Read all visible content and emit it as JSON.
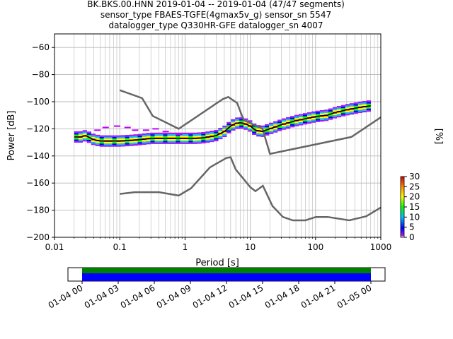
{
  "chart_data": [
    {
      "type": "heatmap",
      "title_lines": [
        "BK.BKS.00.HNN   2019-01-04 -- 2019-01-04  (47/47 segments)",
        "sensor_type FBAES-TGFE(4gmax5v_g) sensor_sn 5547",
        "datalogger_type Q330HR-GFE datalogger_sn 4007"
      ],
      "xlabel": "Period [s]",
      "ylabel": "Power [dB]",
      "xscale": "log",
      "xlim": [
        0.01,
        1000
      ],
      "ylim": [
        -200,
        -50
      ],
      "x_ticks": [
        0.01,
        0.1,
        1,
        10,
        100,
        1000
      ],
      "x_tick_labels": [
        "0.01",
        "0.1",
        "1",
        "10",
        "100",
        "1000"
      ],
      "y_ticks": [
        -60,
        -80,
        -100,
        -120,
        -140,
        -160,
        -180,
        -200
      ],
      "y_tick_labels": [
        "−60",
        "−80",
        "−100",
        "−120",
        "−140",
        "−160",
        "−180",
        "−200"
      ],
      "grid": true,
      "noise_model_high": {
        "x": [
          0.1,
          0.22,
          0.32,
          0.8,
          3.8,
          4.6,
          6.3,
          7.9,
          15.4,
          20,
          354.8,
          1000
        ],
        "y": [
          -91.5,
          -97.4,
          -110.5,
          -120,
          -98,
          -96.5,
          -101,
          -113.5,
          -120,
          -138.5,
          -126,
          -111.5
        ]
      },
      "noise_model_low": {
        "x": [
          0.1,
          0.17,
          0.4,
          0.8,
          1.24,
          2.4,
          4.3,
          5.0,
          6.0,
          10,
          12,
          15.6,
          21.9,
          31.6,
          45,
          70,
          101,
          154,
          328,
          600,
          1000
        ],
        "y": [
          -168,
          -166.7,
          -166.7,
          -169.2,
          -163.8,
          -148.5,
          -141.5,
          -141,
          -150,
          -163,
          -166,
          -162,
          -177,
          -185,
          -187.5,
          -187.5,
          -185,
          -185,
          -187.5,
          -184.5,
          -178
        ]
      },
      "mode_curve": {
        "x": [
          0.02,
          0.025,
          0.03,
          0.04,
          0.05,
          0.07,
          0.1,
          0.15,
          0.2,
          0.3,
          0.5,
          0.8,
          1,
          1.5,
          2,
          3,
          4,
          5,
          6,
          7,
          8,
          9,
          10,
          12,
          15,
          20,
          30,
          50,
          80,
          100,
          150,
          200,
          300,
          500,
          700
        ],
        "y": [
          -126,
          -126,
          -125,
          -128,
          -129,
          -129,
          -129,
          -128.5,
          -128,
          -127,
          -127,
          -127,
          -127,
          -127,
          -126.5,
          -125,
          -122,
          -118,
          -116,
          -115.5,
          -116,
          -117,
          -118,
          -121,
          -122,
          -120,
          -117,
          -114,
          -112,
          -111,
          -110,
          -108,
          -106,
          -104,
          -103
        ]
      },
      "color_scale": {
        "label": "[%]",
        "min": 0,
        "max": 30,
        "ticks": [
          0,
          5,
          10,
          15,
          20,
          25,
          30
        ]
      }
    },
    {
      "type": "bar",
      "xlim_labels": [
        "01-04 00",
        "01-05 00"
      ],
      "x_tick_labels": [
        "01-04 00",
        "01-04 03",
        "01-04 06",
        "01-04 09",
        "01-04 12",
        "01-04 15",
        "01-04 18",
        "01-04 21",
        "01-05 00"
      ],
      "coverage": [
        {
          "start": "01-04 00",
          "end": "01-05 00",
          "color": "#008000"
        },
        {
          "start": "01-04 00",
          "end": "01-05 00",
          "color": "#0000ff"
        }
      ]
    }
  ]
}
